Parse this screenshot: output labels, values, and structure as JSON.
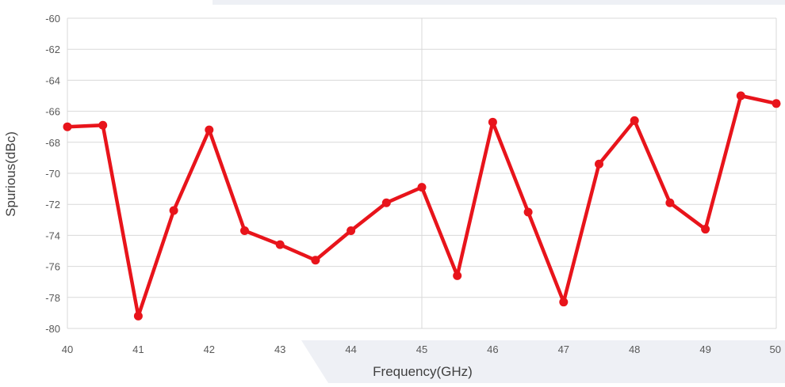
{
  "colors": {
    "series": "#e8141b",
    "grid": "#d9d9d9",
    "text": "#595959",
    "band": "#eef0f5"
  },
  "chart_data": {
    "type": "line",
    "title": "",
    "xlabel": "Frequency(GHz)",
    "ylabel": "Spurious(dBc)",
    "xlim": [
      40,
      50
    ],
    "ylim": [
      -80,
      -60
    ],
    "x_ticks": [
      40,
      41,
      42,
      43,
      44,
      45,
      46,
      47,
      48,
      49,
      50
    ],
    "y_ticks": [
      -60,
      -62,
      -64,
      -66,
      -68,
      -70,
      -72,
      -74,
      -76,
      -78,
      -80
    ],
    "grid": true,
    "legend": "none",
    "series": [
      {
        "x": [
          40,
          40.5,
          41,
          41.5,
          42,
          42.5,
          43,
          43.5,
          44,
          44.5,
          45,
          45.5,
          46,
          46.5,
          47,
          47.5,
          48,
          48.5,
          49,
          49.5,
          50
        ],
        "y": [
          -67.0,
          -66.9,
          -79.2,
          -72.4,
          -67.2,
          -73.7,
          -74.6,
          -75.6,
          -73.7,
          -71.9,
          -70.9,
          -76.6,
          -66.7,
          -72.5,
          -78.3,
          -69.4,
          -66.6,
          -71.9,
          -73.6,
          -65.0,
          -65.5
        ]
      }
    ]
  }
}
